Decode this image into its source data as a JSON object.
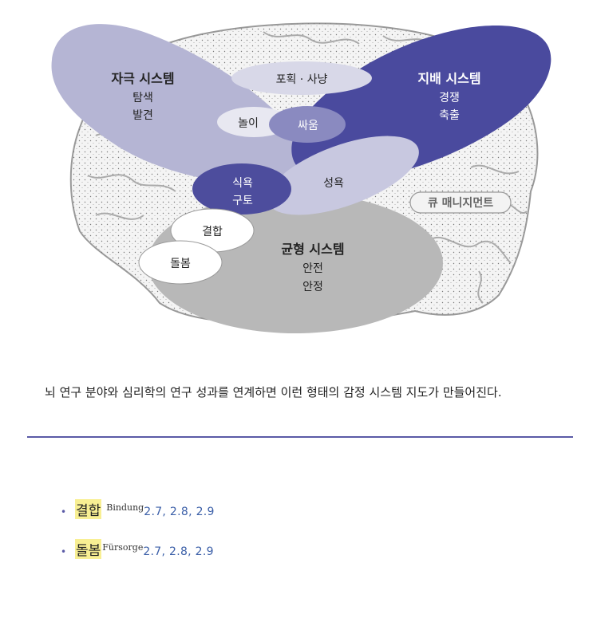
{
  "diagram": {
    "systems": {
      "stimulus": {
        "title": "자극 시스템",
        "items": [
          "탐색",
          "발견"
        ]
      },
      "dominance": {
        "title": "지배 시스템",
        "items": [
          "경쟁",
          "축출"
        ]
      },
      "balance": {
        "title": "균형 시스템",
        "items": [
          "안전",
          "안정"
        ]
      }
    },
    "overlaps": {
      "hunt": "포획 · 사냥",
      "play": "놀이",
      "fight": "싸움",
      "food_line1": "식욕",
      "food_line2": "구토",
      "sex": "성욕",
      "bond": "결합",
      "care": "돌봄"
    },
    "tag": "큐 매니지먼트",
    "colors": {
      "stimulus": "#b5b5d4",
      "dominance": "#4a4a9e",
      "balance": "#b8b8b8",
      "fight": "#8a8ac0",
      "food": "#4d4d9d",
      "sex": "#c8c8e0",
      "hunt": "#d8d8e8"
    }
  },
  "caption": "뇌 연구 분야와 심리학의 연구 성과를 연계하면 이런 형태의 감정 시스템 지도가 만들어진다.",
  "list": [
    {
      "term": "결합",
      "german": "Bindung",
      "refs": "2.7, 2.8, 2.9"
    },
    {
      "term": "돌봄",
      "german": "Fürsorge",
      "refs": "2.7, 2.8, 2.9"
    }
  ]
}
